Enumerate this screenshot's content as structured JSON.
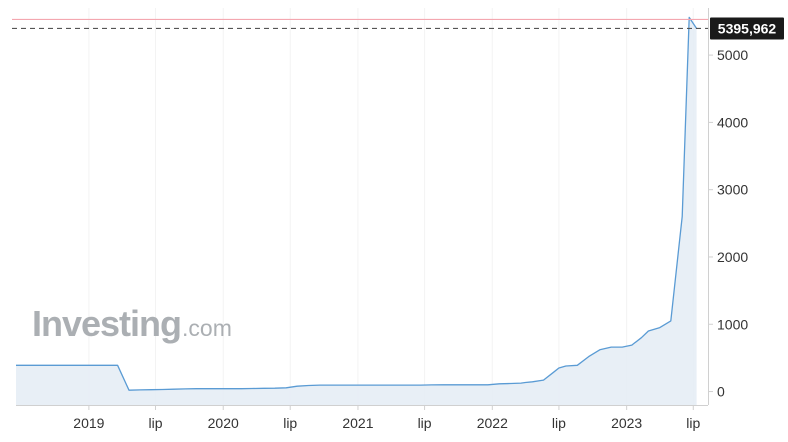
{
  "watermark": {
    "brand": "Investing",
    "suffix": ".com"
  },
  "colors": {
    "line": "#5a9bd4",
    "area": "#e4ecf4",
    "axis": "#d0d0d0",
    "label": "#333333",
    "ref_line": "#f4a7b0",
    "last_value_line": "#555555",
    "badge_bg": "#1a1a1a",
    "badge_text": "#ffffff"
  },
  "chart_data": {
    "type": "area",
    "title": "",
    "xlabel": "",
    "ylabel": "",
    "ylim": [
      -200,
      5700
    ],
    "xlim": [
      "2018-06-17",
      "2023-08-10"
    ],
    "y_axis_position": "right",
    "grid": false,
    "y_ticks": [
      0,
      1000,
      2000,
      3000,
      4000,
      5000
    ],
    "y_tick_labels": [
      "0",
      "1000",
      "2000",
      "3000",
      "4000",
      "5000"
    ],
    "x_ticks": [
      "2019-01-01",
      "2019-07-01",
      "2020-01-01",
      "2020-07-01",
      "2021-01-01",
      "2021-07-01",
      "2022-01-01",
      "2022-07-01",
      "2023-01-01",
      "2023-07-01"
    ],
    "x_tick_labels": [
      "2019",
      "lip",
      "2020",
      "lip",
      "2021",
      "lip",
      "2022",
      "lip",
      "2023",
      "lip"
    ],
    "reference_line": 5530,
    "last_value": 5395.962,
    "last_value_label": "5395,962",
    "series": [
      {
        "x": [
          "2018-06-17",
          "2018-07-15",
          "2018-08-15",
          "2018-09-15",
          "2018-10-15",
          "2018-11-15",
          "2018-12-15",
          "2019-01-15",
          "2019-02-15",
          "2019-03-20",
          "2019-04-20",
          "2019-05-20",
          "2019-06-20",
          "2019-07-20",
          "2019-08-20",
          "2019-09-20",
          "2019-10-20",
          "2019-11-20",
          "2019-12-20",
          "2020-01-20",
          "2020-02-20",
          "2020-03-20",
          "2020-04-20",
          "2020-05-20",
          "2020-06-20",
          "2020-07-20",
          "2020-08-20",
          "2020-09-20",
          "2020-10-20",
          "2020-11-20",
          "2020-12-20",
          "2021-01-20",
          "2021-02-20",
          "2021-03-20",
          "2021-04-20",
          "2021-05-20",
          "2021-06-20",
          "2021-07-20",
          "2021-08-20",
          "2021-09-20",
          "2021-10-20",
          "2021-11-20",
          "2021-12-20",
          "2022-01-20",
          "2022-02-20",
          "2022-03-20",
          "2022-04-01",
          "2022-04-20",
          "2022-05-20",
          "2022-06-15",
          "2022-07-01",
          "2022-07-20",
          "2022-08-20",
          "2022-09-20",
          "2022-10-20",
          "2022-11-20",
          "2022-12-20",
          "2023-01-15",
          "2023-02-10",
          "2023-03-01",
          "2023-04-01",
          "2023-05-01",
          "2023-06-01",
          "2023-06-20",
          "2023-07-10"
        ],
        "values": [
          390,
          390,
          390,
          390,
          390,
          390,
          390,
          390,
          390,
          390,
          20,
          25,
          28,
          30,
          35,
          40,
          42,
          42,
          42,
          42,
          42,
          45,
          48,
          50,
          55,
          80,
          90,
          95,
          95,
          95,
          95,
          95,
          95,
          95,
          95,
          95,
          95,
          98,
          100,
          100,
          100,
          100,
          100,
          115,
          120,
          125,
          135,
          145,
          170,
          280,
          350,
          380,
          390,
          520,
          620,
          660,
          660,
          690,
          800,
          900,
          950,
          1050,
          2600,
          5560,
          5395.962
        ]
      }
    ]
  }
}
